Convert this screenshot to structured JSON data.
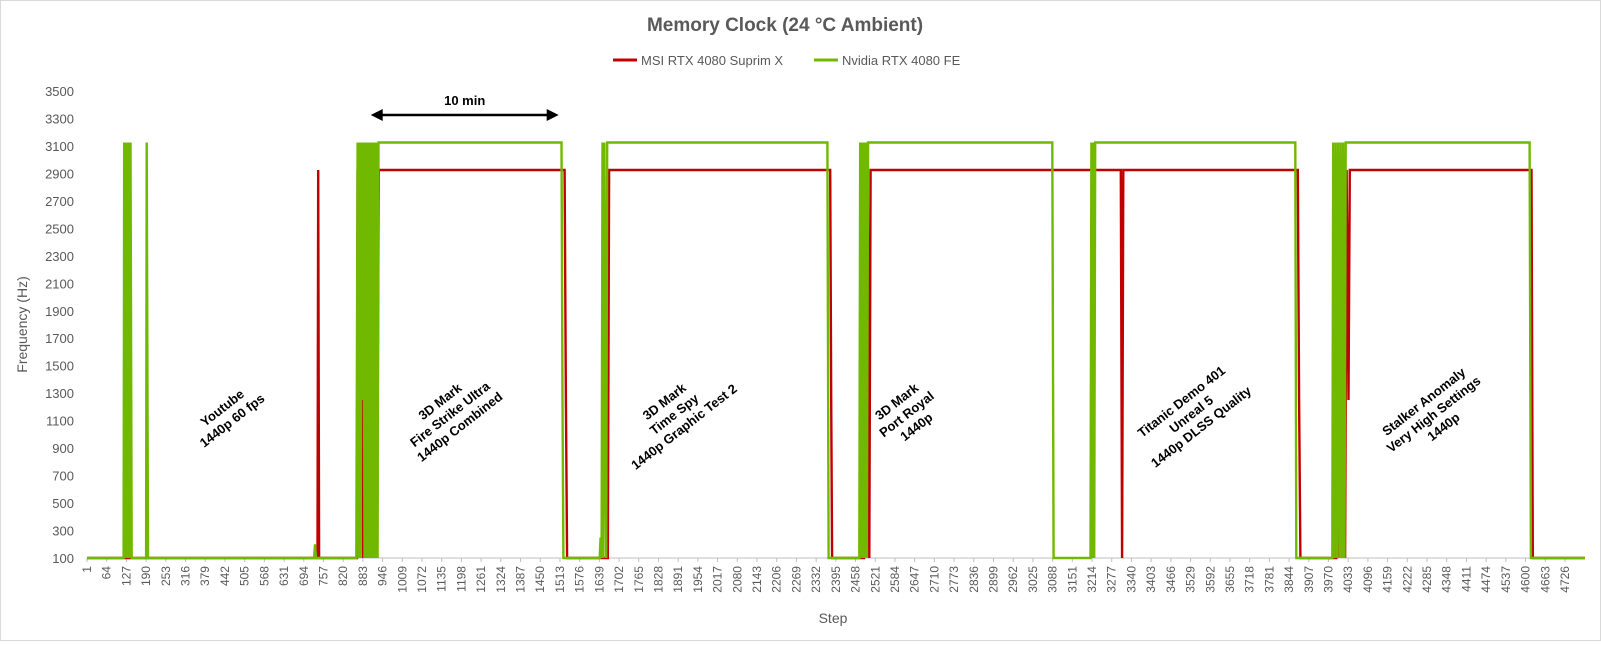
{
  "chart_data": {
    "type": "line",
    "title": "Memory Clock (24 °C Ambient)",
    "xlabel": "Step",
    "ylabel": "Frequency (Hz)",
    "ylim": [
      100,
      3500
    ],
    "yticks": [
      100,
      300,
      500,
      700,
      900,
      1100,
      1300,
      1500,
      1700,
      1900,
      2100,
      2300,
      2500,
      2700,
      2900,
      3100,
      3300,
      3500
    ],
    "xlim": [
      1,
      4790
    ],
    "xtick_step": 63,
    "xticks": [
      1,
      64,
      127,
      190,
      253,
      316,
      379,
      442,
      505,
      568,
      631,
      694,
      757,
      820,
      883,
      946,
      1009,
      1072,
      1135,
      1198,
      1261,
      1324,
      1387,
      1450,
      1513,
      1576,
      1639,
      1702,
      1765,
      1828,
      1891,
      1954,
      2017,
      2080,
      2143,
      2206,
      2269,
      2332,
      2395,
      2458,
      2521,
      2584,
      2647,
      2710,
      2773,
      2836,
      2899,
      2962,
      3025,
      3088,
      3151,
      3214,
      3277,
      3340,
      3403,
      3466,
      3529,
      3592,
      3655,
      3718,
      3781,
      3844,
      3907,
      3970,
      4033,
      4096,
      4159,
      4222,
      4285,
      4348,
      4411,
      4474,
      4537,
      4600,
      4663,
      4726
    ],
    "grid": false,
    "legend_position": "top",
    "series": [
      {
        "name": "MSI RTX 4080 Suprim X",
        "color": "#c00000",
        "points": [
          [
            1,
            100
          ],
          [
            738,
            100
          ],
          [
            740,
            2925
          ],
          [
            743,
            100
          ],
          [
            864,
            100
          ],
          [
            866,
            2925
          ],
          [
            872,
            100
          ],
          [
            878,
            2925
          ],
          [
            884,
            100
          ],
          [
            890,
            1250
          ],
          [
            896,
            100
          ],
          [
            900,
            2925
          ],
          [
            906,
            100
          ],
          [
            912,
            2925
          ],
          [
            918,
            100
          ],
          [
            924,
            2925
          ],
          [
            928,
            100
          ],
          [
            934,
            2925
          ],
          [
            1528,
            2925
          ],
          [
            1532,
            1250
          ],
          [
            1536,
            100
          ],
          [
            1666,
            100
          ],
          [
            1670,
            2925
          ],
          [
            2377,
            2925
          ],
          [
            2380,
            1250
          ],
          [
            2383,
            100
          ],
          [
            2485,
            100
          ],
          [
            2488,
            2925
          ],
          [
            2493,
            100
          ],
          [
            2497,
            2925
          ],
          [
            2502,
            100
          ],
          [
            2506,
            2925
          ],
          [
            3302,
            2925
          ],
          [
            3306,
            2925
          ],
          [
            3310,
            100
          ],
          [
            3314,
            2925
          ],
          [
            3872,
            2925
          ],
          [
            3876,
            1250
          ],
          [
            3880,
            100
          ],
          [
            3995,
            100
          ],
          [
            3999,
            2925
          ],
          [
            4004,
            100
          ],
          [
            4008,
            2925
          ],
          [
            4013,
            100
          ],
          [
            4018,
            2925
          ],
          [
            4023,
            100
          ],
          [
            4028,
            2925
          ],
          [
            4034,
            1250
          ],
          [
            4038,
            2925
          ],
          [
            4619,
            2925
          ],
          [
            4623,
            100
          ],
          [
            4790,
            100
          ]
        ]
      },
      {
        "name": "Nvidia RTX 4080 FE",
        "color": "#70b900",
        "points": [
          [
            1,
            100
          ],
          [
            118,
            100
          ],
          [
            120,
            3125
          ],
          [
            122,
            100
          ],
          [
            124,
            3125
          ],
          [
            126,
            100
          ],
          [
            128,
            3125
          ],
          [
            130,
            100
          ],
          [
            132,
            3125
          ],
          [
            134,
            100
          ],
          [
            136,
            3125
          ],
          [
            138,
            100
          ],
          [
            140,
            3125
          ],
          [
            144,
            100
          ],
          [
            190,
            100
          ],
          [
            192,
            3125
          ],
          [
            196,
            100
          ],
          [
            727,
            100
          ],
          [
            730,
            200
          ],
          [
            733,
            100
          ],
          [
            862,
            100
          ],
          [
            866,
            3125
          ],
          [
            870,
            100
          ],
          [
            873,
            3125
          ],
          [
            876,
            100
          ],
          [
            879,
            3125
          ],
          [
            882,
            1250
          ],
          [
            885,
            3125
          ],
          [
            888,
            100
          ],
          [
            891,
            3125
          ],
          [
            894,
            100
          ],
          [
            897,
            3125
          ],
          [
            900,
            100
          ],
          [
            903,
            3125
          ],
          [
            906,
            100
          ],
          [
            909,
            3125
          ],
          [
            912,
            100
          ],
          [
            915,
            3125
          ],
          [
            918,
            100
          ],
          [
            921,
            3125
          ],
          [
            924,
            100
          ],
          [
            927,
            3125
          ],
          [
            930,
            100
          ],
          [
            933,
            3125
          ],
          [
            1518,
            3125
          ],
          [
            1521,
            1250
          ],
          [
            1524,
            100
          ],
          [
            1640,
            100
          ],
          [
            1643,
            250
          ],
          [
            1646,
            100
          ],
          [
            1649,
            3125
          ],
          [
            1652,
            100
          ],
          [
            1655,
            3125
          ],
          [
            1658,
            1250
          ],
          [
            1661,
            100
          ],
          [
            1664,
            3125
          ],
          [
            2368,
            3125
          ],
          [
            2372,
            100
          ],
          [
            2470,
            100
          ],
          [
            2473,
            3125
          ],
          [
            2476,
            100
          ],
          [
            2479,
            3125
          ],
          [
            2482,
            100
          ],
          [
            2485,
            3125
          ],
          [
            2488,
            100
          ],
          [
            2491,
            3125
          ],
          [
            2494,
            100
          ],
          [
            2498,
            3125
          ],
          [
            3087,
            3125
          ],
          [
            3091,
            100
          ],
          [
            3209,
            100
          ],
          [
            3212,
            3125
          ],
          [
            3215,
            100
          ],
          [
            3218,
            3125
          ],
          [
            3221,
            100
          ],
          [
            3224,
            3125
          ],
          [
            3864,
            3125
          ],
          [
            3867,
            100
          ],
          [
            3982,
            100
          ],
          [
            3985,
            3125
          ],
          [
            3989,
            100
          ],
          [
            3993,
            3125
          ],
          [
            3997,
            100
          ],
          [
            4001,
            3125
          ],
          [
            4005,
            100
          ],
          [
            4009,
            3125
          ],
          [
            4013,
            100
          ],
          [
            4017,
            3125
          ],
          [
            4021,
            100
          ],
          [
            4025,
            3125
          ],
          [
            4613,
            3125
          ],
          [
            4617,
            100
          ],
          [
            4790,
            100
          ]
        ]
      }
    ],
    "annotations": [
      {
        "text": [
          "Youtube",
          "1440p 60 fps"
        ],
        "x": 448,
        "y": 1150
      },
      {
        "text": [
          "3D Mark",
          "Fire Strike Ultra",
          "1440p Combined"
        ],
        "x": 1160,
        "y": 1150
      },
      {
        "text": [
          "3D Mark",
          "Time Spy",
          "1440p Graphic Test 2"
        ],
        "x": 1877,
        "y": 1150
      },
      {
        "text": [
          "3D Mark",
          "Port Royal",
          "1440p"
        ],
        "x": 2620,
        "y": 1150
      },
      {
        "text": [
          "Titanic Demo 401",
          "Unreal 5",
          "1440p DLSS Quality"
        ],
        "x": 3530,
        "y": 1150
      },
      {
        "text": [
          "Stalker Anomaly",
          "Very High Settings",
          "1440p"
        ],
        "x": 4305,
        "y": 1150
      }
    ],
    "span_annotation": {
      "text": "10 min",
      "x_start": 908,
      "x_end": 1509,
      "y": 3325
    }
  }
}
